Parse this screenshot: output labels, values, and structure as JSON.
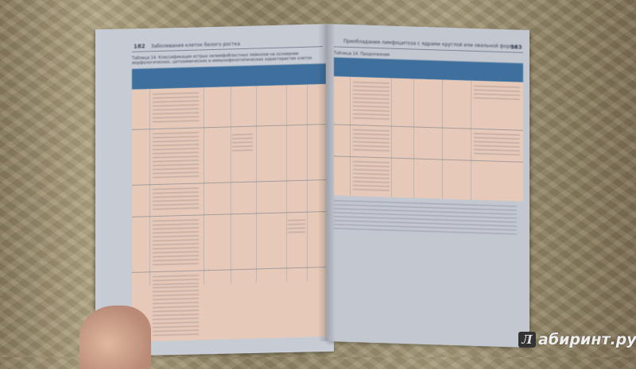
{
  "book": {
    "left_page": {
      "page_number": "182",
      "running_head": "Заболевания клеток белого ростка",
      "table_caption": "Таблица 14. Классификация острых нелимфобластных лейкозов на основании морфологических, цитохимических и иммунофенотипических характеристик клеток"
    },
    "right_page": {
      "page_number": "183",
      "running_head": "Преобладание лимфоцитоза с ядрами круглой или овальной формы",
      "table_caption": "Таблица 14. Продолжение"
    }
  },
  "watermark": {
    "logo_letter": "Л",
    "text": "абиринт.ру"
  },
  "colors": {
    "table_header": "#3f6f9c",
    "table_body": "#e6c9b8",
    "paper": "#c7cbd4"
  }
}
